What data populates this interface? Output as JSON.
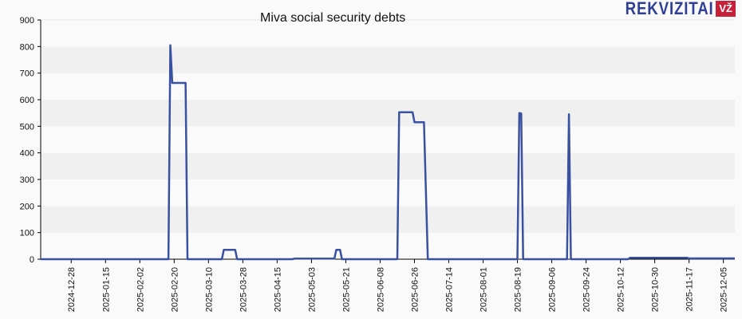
{
  "header": {
    "title": "Miva social security debts",
    "logo_text": "REKVIZITAI",
    "logo_badge": "VŽ"
  },
  "colors": {
    "line": "#3a50a0",
    "band_dark": "#f0f0f0",
    "band_light": "#fafafa",
    "logo_blue": "#2f3f95",
    "logo_red": "#c8203a"
  },
  "chart_data": {
    "type": "line",
    "title": "Miva social security debts",
    "xlabel": "",
    "ylabel": "",
    "ylim": [
      0,
      900
    ],
    "y_ticks": [
      0,
      100,
      200,
      300,
      400,
      500,
      600,
      700,
      800,
      900
    ],
    "x_tick_labels": [
      "2024-12-28",
      "2025-01-15",
      "2025-02-02",
      "2025-02-20",
      "2025-03-10",
      "2025-03-28",
      "2025-04-15",
      "2025-05-03",
      "2025-05-21",
      "2025-06-08",
      "2025-06-26",
      "2025-07-14",
      "2025-08-01",
      "2025-08-19",
      "2025-09-06",
      "2025-09-24",
      "2025-10-12",
      "2025-10-30",
      "2025-11-17",
      "2025-12-05"
    ],
    "grid": "horizontal alternating bands",
    "legend": "none",
    "series": [
      {
        "name": "Social security debt",
        "points": [
          [
            "2024-12-12",
            0
          ],
          [
            "2025-02-17",
            0
          ],
          [
            "2025-02-18",
            805
          ],
          [
            "2025-02-19",
            663
          ],
          [
            "2025-02-26",
            663
          ],
          [
            "2025-02-27",
            0
          ],
          [
            "2025-03-17",
            0
          ],
          [
            "2025-03-18",
            35
          ],
          [
            "2025-03-24",
            35
          ],
          [
            "2025-03-25",
            0
          ],
          [
            "2025-04-23",
            0
          ],
          [
            "2025-04-24",
            2
          ],
          [
            "2025-05-15",
            2
          ],
          [
            "2025-05-16",
            35
          ],
          [
            "2025-05-18",
            35
          ],
          [
            "2025-05-19",
            0
          ],
          [
            "2025-06-17",
            0
          ],
          [
            "2025-06-18",
            553
          ],
          [
            "2025-06-25",
            553
          ],
          [
            "2025-06-26",
            515
          ],
          [
            "2025-07-01",
            515
          ],
          [
            "2025-07-03",
            0
          ],
          [
            "2025-08-19",
            0
          ],
          [
            "2025-08-20",
            550
          ],
          [
            "2025-08-21",
            548
          ],
          [
            "2025-08-22",
            0
          ],
          [
            "2025-09-14",
            0
          ],
          [
            "2025-09-15",
            545
          ],
          [
            "2025-09-16",
            0
          ],
          [
            "2025-10-16",
            0
          ],
          [
            "2025-10-17",
            5
          ],
          [
            "2025-11-16",
            5
          ],
          [
            "2025-11-17",
            3
          ],
          [
            "2025-12-11",
            3
          ]
        ]
      }
    ]
  }
}
